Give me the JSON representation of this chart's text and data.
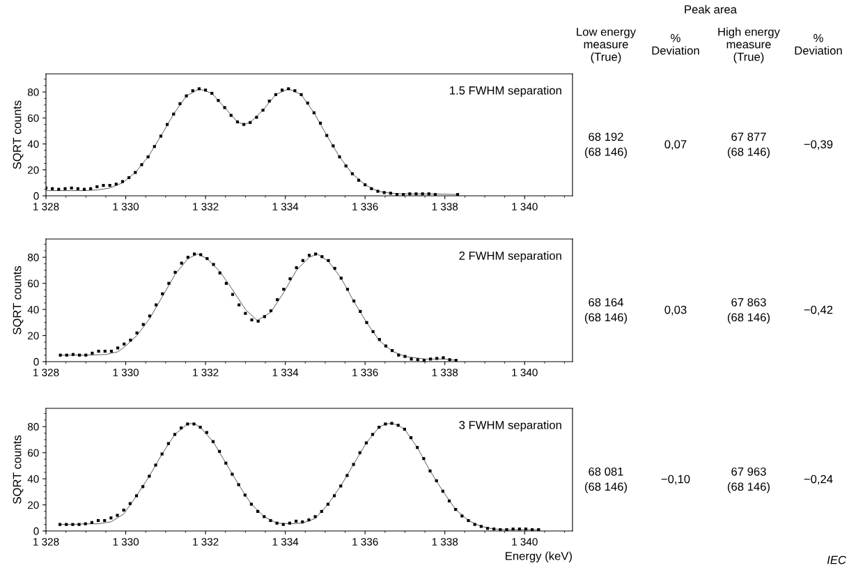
{
  "chart_data": [
    {
      "type": "scatter",
      "ylabel": "SQRT counts",
      "xlim": [
        1328,
        1341.2
      ],
      "ylim": [
        0,
        94
      ],
      "xticks": [
        {
          "value": 1328,
          "label": "1 328"
        },
        {
          "value": 1330,
          "label": "1 330"
        },
        {
          "value": 1332,
          "label": "1 332"
        },
        {
          "value": 1334,
          "label": "1 334"
        },
        {
          "value": 1336,
          "label": "1 336"
        },
        {
          "value": 1338,
          "label": "1 338"
        },
        {
          "value": 1340,
          "label": "1 340"
        }
      ],
      "yticks": [
        0,
        20,
        40,
        60,
        80
      ],
      "grid": false,
      "legend": false,
      "annotations": [
        "1.5 FWHM separation",
        "68 192\n(68 146)",
        "0,07",
        "67 877\n(68 146)",
        "−0,39",
        "Peak area",
        "Low energy\nmeasure\n(True)",
        "%\nDeviation",
        "High energy\nmeasure\n(True)",
        "%\nDeviation"
      ],
      "series": [
        {
          "type": "scatter",
          "color": "#000000",
          "marker": "square",
          "x": [
            1328.0,
            1328.16,
            1328.32,
            1328.48,
            1328.64,
            1328.8,
            1328.96,
            1329.12,
            1329.28,
            1329.44,
            1329.6,
            1329.76,
            1329.92,
            1330.08,
            1330.24,
            1330.4,
            1330.56,
            1330.72,
            1330.88,
            1331.04,
            1331.2,
            1331.36,
            1331.52,
            1331.68,
            1331.84,
            1332.0,
            1332.16,
            1332.32,
            1332.48,
            1332.64,
            1332.8,
            1332.96,
            1333.12,
            1333.28,
            1333.44,
            1333.6,
            1333.76,
            1333.92,
            1334.08,
            1334.24,
            1334.4,
            1334.56,
            1334.72,
            1334.88,
            1335.04,
            1335.2,
            1335.36,
            1335.52,
            1335.68,
            1335.84,
            1336.0,
            1336.16,
            1336.32,
            1336.48,
            1336.64,
            1336.8,
            1336.96,
            1337.12,
            1337.28,
            1337.44,
            1337.6,
            1337.76,
            1338.32
          ],
          "values": [
            6,
            5.5,
            5,
            5.5,
            6,
            5.5,
            5,
            5.5,
            7,
            8,
            8,
            9,
            11,
            14,
            18,
            24,
            30,
            38,
            46,
            55,
            63,
            71,
            77,
            81,
            82.5,
            81.5,
            79,
            73.5,
            68,
            62,
            57,
            55,
            56.5,
            60.5,
            66,
            73,
            78,
            81.5,
            82.5,
            81,
            78,
            71.5,
            64,
            56,
            46.5,
            38.5,
            30,
            23,
            17,
            12,
            8.5,
            5.5,
            3.5,
            2.5,
            2,
            1,
            1,
            1.5,
            1.5,
            1.5,
            1.5,
            1,
            1
          ]
        },
        {
          "type": "line",
          "color": "#555555",
          "marker": "none",
          "line_style": "solid",
          "x": [
            1328.0,
            1328.32,
            1328.64,
            1328.96,
            1329.28,
            1329.6,
            1329.92,
            1330.24,
            1330.56,
            1330.88,
            1331.2,
            1331.52,
            1331.84,
            1332.16,
            1332.48,
            1332.8,
            1332.96,
            1333.12,
            1333.44,
            1333.76,
            1334.08,
            1334.4,
            1334.72,
            1335.04,
            1335.36,
            1335.68,
            1336.0,
            1336.32,
            1336.64,
            1336.96,
            1337.28,
            1337.6,
            1338.32
          ],
          "values": [
            4,
            4,
            4,
            4,
            4.5,
            6,
            10,
            18,
            30,
            46,
            63,
            77,
            82.5,
            79,
            68,
            57,
            55,
            56.5,
            66,
            78,
            82.5,
            78,
            64,
            46.5,
            30,
            17,
            8.5,
            3.5,
            2,
            1.5,
            1.5,
            1.5,
            1
          ]
        }
      ]
    },
    {
      "type": "scatter",
      "ylabel": "SQRT counts",
      "xlim": [
        1328,
        1341.2
      ],
      "ylim": [
        0,
        94
      ],
      "xticks": [
        {
          "value": 1328,
          "label": "1 328"
        },
        {
          "value": 1330,
          "label": "1 330"
        },
        {
          "value": 1332,
          "label": "1 332"
        },
        {
          "value": 1334,
          "label": "1 334"
        },
        {
          "value": 1336,
          "label": "1 336"
        },
        {
          "value": 1338,
          "label": "1 338"
        },
        {
          "value": 1340,
          "label": "1 340"
        }
      ],
      "yticks": [
        0,
        20,
        40,
        60,
        80
      ],
      "grid": false,
      "legend": false,
      "annotations": [
        "2 FWHM separation",
        "68 164\n(68 146)",
        "0,03",
        "67 863\n(68 146)",
        "−0,42"
      ],
      "series": [
        {
          "type": "scatter",
          "color": "#000000",
          "marker": "square",
          "x": [
            1328.36,
            1328.52,
            1328.68,
            1328.84,
            1329.0,
            1329.16,
            1329.32,
            1329.48,
            1329.64,
            1329.8,
            1329.96,
            1330.12,
            1330.28,
            1330.44,
            1330.6,
            1330.76,
            1330.92,
            1331.08,
            1331.24,
            1331.4,
            1331.56,
            1331.72,
            1331.88,
            1332.04,
            1332.2,
            1332.36,
            1332.52,
            1332.68,
            1332.84,
            1333.0,
            1333.16,
            1333.32,
            1333.48,
            1333.64,
            1333.8,
            1333.96,
            1334.12,
            1334.28,
            1334.44,
            1334.6,
            1334.76,
            1334.92,
            1335.08,
            1335.24,
            1335.4,
            1335.56,
            1335.72,
            1335.88,
            1336.04,
            1336.2,
            1336.36,
            1336.52,
            1336.68,
            1336.84,
            1337.0,
            1337.16,
            1337.32,
            1337.48,
            1337.64,
            1337.8,
            1337.96,
            1338.12,
            1338.28
          ],
          "values": [
            5,
            5,
            5.5,
            5,
            5,
            6.5,
            8,
            8,
            8,
            10.5,
            13.5,
            16.5,
            22,
            28.5,
            35,
            43.5,
            52,
            60,
            68.5,
            75.5,
            80,
            82.5,
            82,
            79,
            74.5,
            68,
            60,
            51.5,
            43.5,
            37,
            32,
            31,
            34.5,
            39,
            47.5,
            55.5,
            63.5,
            72,
            77.5,
            81.5,
            82.5,
            80.5,
            77.5,
            71.5,
            64,
            55.5,
            46.5,
            38.5,
            30,
            23,
            17,
            12,
            8.5,
            5,
            4,
            2,
            1.5,
            1,
            2,
            2.5,
            3,
            1.5,
            1
          ]
        },
        {
          "type": "line",
          "color": "#555555",
          "marker": "none",
          "line_style": "solid",
          "x": [
            1328.36,
            1329,
            1329.5,
            1329.8,
            1330,
            1330.28,
            1330.6,
            1330.92,
            1331.24,
            1331.56,
            1331.8,
            1332.04,
            1332.36,
            1332.68,
            1333,
            1333.3,
            1333.64,
            1333.96,
            1334.28,
            1334.6,
            1334.8,
            1335.08,
            1335.4,
            1335.72,
            1336.04,
            1336.36,
            1336.68,
            1337,
            1337.5,
            1338,
            1338.28
          ],
          "values": [
            5,
            5,
            5.5,
            7.5,
            12,
            20,
            33,
            50,
            67,
            79,
            82.5,
            79,
            69,
            55,
            40,
            31.5,
            38,
            53,
            70,
            80,
            82.5,
            77,
            64,
            46,
            30,
            16,
            8,
            4,
            2,
            2,
            1
          ]
        }
      ]
    },
    {
      "type": "scatter",
      "ylabel": "SQRT counts",
      "xlabel": "Energy (keV)",
      "xlim": [
        1328,
        1341.2
      ],
      "ylim": [
        0,
        94
      ],
      "xticks": [
        {
          "value": 1328,
          "label": "1 328"
        },
        {
          "value": 1330,
          "label": "1 330"
        },
        {
          "value": 1332,
          "label": "1 332"
        },
        {
          "value": 1334,
          "label": "1 334"
        },
        {
          "value": 1336,
          "label": "1 336"
        },
        {
          "value": 1338,
          "label": "1 338"
        },
        {
          "value": 1340,
          "label": "1 340"
        }
      ],
      "yticks": [
        0,
        20,
        40,
        60,
        80
      ],
      "grid": false,
      "legend": false,
      "annotations": [
        "3 FWHM separation",
        "68 081\n(68 146)",
        "−0,10",
        "67 963\n(68 146)",
        "−0,24",
        "IEC"
      ],
      "series": [
        {
          "type": "scatter",
          "color": "#000000",
          "marker": "square",
          "x": [
            1328.35,
            1328.51,
            1328.67,
            1328.83,
            1328.99,
            1329.15,
            1329.31,
            1329.47,
            1329.63,
            1329.79,
            1329.95,
            1330.11,
            1330.27,
            1330.43,
            1330.59,
            1330.75,
            1330.91,
            1331.07,
            1331.23,
            1331.39,
            1331.55,
            1331.71,
            1331.87,
            1332.03,
            1332.19,
            1332.35,
            1332.51,
            1332.67,
            1332.83,
            1332.99,
            1333.15,
            1333.31,
            1333.47,
            1333.63,
            1333.79,
            1333.95,
            1334.11,
            1334.27,
            1334.43,
            1334.59,
            1334.75,
            1334.91,
            1335.07,
            1335.23,
            1335.39,
            1335.55,
            1335.71,
            1335.87,
            1336.03,
            1336.19,
            1336.35,
            1336.51,
            1336.67,
            1336.83,
            1336.99,
            1337.15,
            1337.31,
            1337.47,
            1337.63,
            1337.79,
            1337.95,
            1338.11,
            1338.27,
            1338.43,
            1338.59,
            1338.75,
            1338.91,
            1339.07,
            1339.23,
            1339.39,
            1339.55,
            1339.71,
            1339.87,
            1340.03,
            1340.19,
            1340.35
          ],
          "values": [
            5,
            5,
            5,
            5,
            5.5,
            6.5,
            8,
            8,
            10,
            12,
            16,
            21,
            27,
            34,
            42,
            50.5,
            59,
            67,
            74,
            79,
            82,
            82,
            79.5,
            75.5,
            68.5,
            61,
            52,
            43.5,
            35.5,
            27.5,
            20.5,
            15,
            11,
            8,
            6,
            5,
            6,
            7.5,
            7,
            8.5,
            11,
            15,
            20.5,
            27,
            34.5,
            42.5,
            51,
            60,
            67.5,
            74,
            79.5,
            82,
            82.5,
            81,
            78,
            71.5,
            64,
            55.5,
            46,
            38.5,
            30.5,
            23,
            16.5,
            11.5,
            8,
            5,
            3.5,
            2,
            1.5,
            1,
            1,
            1.5,
            1.5,
            1.5,
            1,
            1
          ]
        },
        {
          "type": "line",
          "color": "#555555",
          "marker": "none",
          "line_style": "solid",
          "x": [
            1328.35,
            1328.67,
            1328.99,
            1329.31,
            1329.63,
            1329.95,
            1330.27,
            1330.59,
            1330.91,
            1331.23,
            1331.55,
            1331.71,
            1331.87,
            1332.19,
            1332.51,
            1332.83,
            1333.15,
            1333.47,
            1333.79,
            1334.11,
            1334.43,
            1334.75,
            1335.07,
            1335.39,
            1335.71,
            1336.03,
            1336.35,
            1336.51,
            1336.67,
            1336.83,
            1336.99,
            1337.31,
            1337.63,
            1337.95,
            1338.27,
            1338.59,
            1338.91,
            1339.23,
            1339.55,
            1340.35
          ],
          "values": [
            5,
            5,
            5.5,
            5.5,
            7,
            13,
            27,
            42,
            59,
            74,
            82,
            82.5,
            79.5,
            68.5,
            52,
            35.5,
            20.5,
            11,
            6,
            5.5,
            6,
            9.5,
            20.5,
            34.5,
            51,
            67.5,
            79.5,
            82,
            82.5,
            81,
            78,
            64,
            46,
            30.5,
            16.5,
            8,
            3.5,
            1.5,
            1,
            1
          ]
        }
      ]
    }
  ]
}
